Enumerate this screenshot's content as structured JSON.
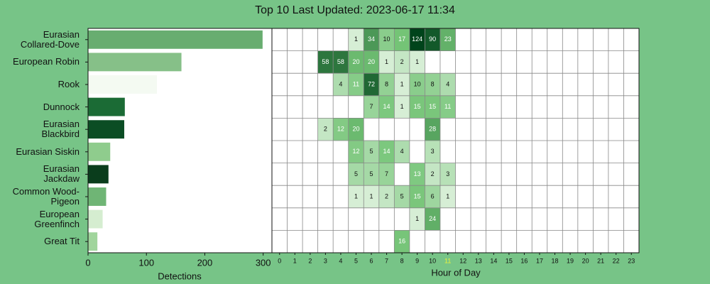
{
  "title": "Top 10 Last Updated: 2023-06-17 11:34",
  "chart_data": [
    {
      "type": "bar",
      "orientation": "horizontal",
      "categories": [
        "Eurasian Collared-Dove",
        "European Robin",
        "Rook",
        "Dunnock",
        "Eurasian Blackbird",
        "Eurasian Siskin",
        "Eurasian Jackdaw",
        "Common Wood-Pigeon",
        "European Greenfinch",
        "Great Tit"
      ],
      "values": [
        299,
        160,
        118,
        63,
        62,
        38,
        35,
        31,
        25,
        16
      ],
      "colors": [
        "#68ad70",
        "#86c088",
        "#f4faf2",
        "#1b6b35",
        "#0b4d24",
        "#8fcc8d",
        "#0a3d1c",
        "#6fb575",
        "#d5edd0",
        "#a0d59c"
      ],
      "xlabel": "Detections",
      "xlim": [
        0,
        315
      ],
      "xticks": [
        0,
        100,
        200,
        300
      ]
    },
    {
      "type": "heatmap",
      "xlabel": "Hour of Day",
      "x": [
        0,
        1,
        2,
        3,
        4,
        5,
        6,
        7,
        8,
        9,
        10,
        11,
        12,
        13,
        14,
        15,
        16,
        17,
        18,
        19,
        20,
        21,
        22,
        23
      ],
      "highlight_x": 11,
      "highlight_color": "#eaf23c",
      "rows": [
        [
          null,
          null,
          null,
          null,
          null,
          1,
          34,
          10,
          17,
          124,
          90,
          23,
          null,
          null,
          null,
          null,
          null,
          null,
          null,
          null,
          null,
          null,
          null,
          null
        ],
        [
          null,
          null,
          null,
          58,
          58,
          20,
          20,
          1,
          2,
          1,
          null,
          null,
          null,
          null,
          null,
          null,
          null,
          null,
          null,
          null,
          null,
          null,
          null,
          null
        ],
        [
          null,
          null,
          null,
          null,
          4,
          11,
          72,
          8,
          1,
          10,
          8,
          4,
          null,
          null,
          null,
          null,
          null,
          null,
          null,
          null,
          null,
          null,
          null,
          null
        ],
        [
          null,
          null,
          null,
          null,
          null,
          null,
          7,
          14,
          1,
          15,
          15,
          11,
          null,
          null,
          null,
          null,
          null,
          null,
          null,
          null,
          null,
          null,
          null,
          null
        ],
        [
          null,
          null,
          null,
          2,
          12,
          20,
          null,
          null,
          null,
          null,
          28,
          null,
          null,
          null,
          null,
          null,
          null,
          null,
          null,
          null,
          null,
          null,
          null,
          null
        ],
        [
          null,
          null,
          null,
          null,
          null,
          12,
          5,
          14,
          4,
          null,
          3,
          null,
          null,
          null,
          null,
          null,
          null,
          null,
          null,
          null,
          null,
          null,
          null,
          null
        ],
        [
          null,
          null,
          null,
          null,
          null,
          5,
          5,
          7,
          null,
          13,
          2,
          3,
          null,
          null,
          null,
          null,
          null,
          null,
          null,
          null,
          null,
          null,
          null,
          null
        ],
        [
          null,
          null,
          null,
          null,
          null,
          1,
          1,
          2,
          5,
          15,
          6,
          1,
          null,
          null,
          null,
          null,
          null,
          null,
          null,
          null,
          null,
          null,
          null,
          null
        ],
        [
          null,
          null,
          null,
          null,
          null,
          null,
          null,
          null,
          null,
          1,
          24,
          null,
          null,
          null,
          null,
          null,
          null,
          null,
          null,
          null,
          null,
          null,
          null,
          null
        ],
        [
          null,
          null,
          null,
          null,
          null,
          null,
          null,
          null,
          16,
          null,
          null,
          null,
          null,
          null,
          null,
          null,
          null,
          null,
          null,
          null,
          null,
          null,
          null,
          null
        ]
      ]
    }
  ]
}
